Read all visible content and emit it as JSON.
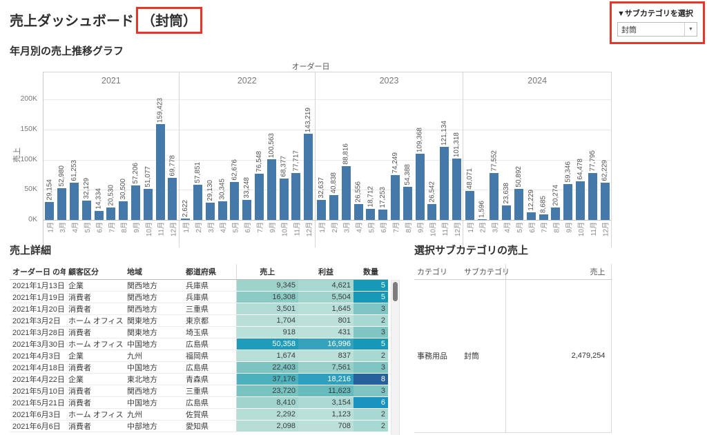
{
  "page": {
    "title": "売上ダッシュボード",
    "title_highlight": "（封筒）"
  },
  "theme": {
    "bar_color": "#4579a9",
    "annotation_red": "#e8352b"
  },
  "filter": {
    "label": "▼サブカテゴリを選択",
    "value": "封筒",
    "dropdown_arrow": "▼"
  },
  "chart_data": {
    "type": "bar",
    "title": "年月別の売上推移グラフ",
    "x_axis_title": "オーダー日",
    "ylabel": "売上",
    "yticks": [
      "200K",
      "150K",
      "100K",
      "50K",
      "0K"
    ],
    "ylim": [
      0,
      200000
    ],
    "grid": true,
    "groups": [
      {
        "year": "2021",
        "categories": [
          "1月",
          "3月",
          "4月",
          "5月",
          "6月",
          "7月",
          "8月",
          "9月",
          "10月",
          "11月",
          "12月"
        ],
        "values": [
          29154,
          52980,
          61253,
          32129,
          14334,
          20530,
          30500,
          57206,
          51077,
          159423,
          69778
        ]
      },
      {
        "year": "2022",
        "categories": [
          "1月",
          "2月",
          "3月",
          "4月",
          "5月",
          "6月",
          "7月",
          "9月",
          "10月",
          "11月",
          "12月"
        ],
        "values": [
          2622,
          57851,
          29130,
          30345,
          62676,
          33248,
          76548,
          100563,
          68377,
          77717,
          143219
        ]
      },
      {
        "year": "2023",
        "categories": [
          "1月",
          "2月",
          "3月",
          "4月",
          "5月",
          "6月",
          "7月",
          "8月",
          "9月",
          "10月",
          "11月",
          "12月"
        ],
        "values": [
          32637,
          40838,
          88816,
          26556,
          18712,
          17253,
          74249,
          54388,
          109368,
          26542,
          121134,
          101318
        ]
      },
      {
        "year": "2024",
        "categories": [
          "1月",
          "2月",
          "3月",
          "4月",
          "5月",
          "6月",
          "7月",
          "8月",
          "9月",
          "10月",
          "11月",
          "12月"
        ],
        "values": [
          48071,
          1596,
          77552,
          23638,
          50892,
          12229,
          8685,
          20274,
          59346,
          64478,
          77795,
          62229
        ]
      }
    ]
  },
  "detail_table": {
    "title": "売上詳細",
    "headers": [
      "オーダー日 の年..",
      "顧客区分",
      "地域",
      "都道府県",
      "売上",
      "利益",
      "数量"
    ],
    "rows": [
      {
        "date": "2021年1月13日",
        "segment": "企業",
        "region": "関西地方",
        "pref": "兵庫県",
        "sales": 9345,
        "profit": 4621,
        "qty": 5,
        "sc": "#9ed3cc",
        "pc": "#a6d7d0",
        "qc": "#1599b7"
      },
      {
        "date": "2021年1月19日",
        "segment": "消費者",
        "region": "関西地方",
        "pref": "兵庫県",
        "sales": 16308,
        "profit": 5504,
        "qty": 5,
        "sc": "#8acbc6",
        "pc": "#a0d4cd",
        "qc": "#1599b7"
      },
      {
        "date": "2021年1月20日",
        "segment": "消費者",
        "region": "関西地方",
        "pref": "三重県",
        "sales": 3501,
        "profit": 1645,
        "qty": 3,
        "sc": "#b2dcd5",
        "pc": "#b7dfd8",
        "qc": "#7fc5c3"
      },
      {
        "date": "2021年3月2日",
        "segment": "ホーム オフィス",
        "region": "関東地方",
        "pref": "東京都",
        "sales": 1704,
        "profit": 801,
        "qty": 2,
        "sc": "#b7dfd8",
        "pc": "#bae0d9",
        "qc": "#a7d8d2"
      },
      {
        "date": "2021年3月28日",
        "segment": "消費者",
        "region": "関東地方",
        "pref": "埼玉県",
        "sales": 918,
        "profit": 431,
        "qty": 3,
        "sc": "#b9e0d9",
        "pc": "#bbe1da",
        "qc": "#7fc5c3"
      },
      {
        "date": "2021年3月30日",
        "segment": "ホーム オフィス",
        "region": "中国地方",
        "pref": "広島県",
        "sales": 50358,
        "profit": 16996,
        "qty": 5,
        "sc": "#1e9cb9",
        "pc": "#35a3bc",
        "qc": "#1599b7"
      },
      {
        "date": "2021年4月3日",
        "segment": "企業",
        "region": "九州",
        "pref": "福岡県",
        "sales": 1674,
        "profit": 837,
        "qty": 2,
        "sc": "#b7dfd8",
        "pc": "#bae0d9",
        "qc": "#a7d8d2"
      },
      {
        "date": "2021年4月18日",
        "segment": "消費者",
        "region": "中国地方",
        "pref": "広島県",
        "sales": 22403,
        "profit": 7561,
        "qty": 3,
        "sc": "#7cc4c1",
        "pc": "#97d0c9",
        "qc": "#7fc5c3"
      },
      {
        "date": "2021年4月22日",
        "segment": "企業",
        "region": "東北地方",
        "pref": "青森県",
        "sales": 37176,
        "profit": 18216,
        "qty": 8,
        "sc": "#4db0bd",
        "pc": "#2f9fc0",
        "qc": "#27619c"
      },
      {
        "date": "2021年5月10日",
        "segment": "消費者",
        "region": "関西地方",
        "pref": "三重県",
        "sales": 23720,
        "profit": 11623,
        "qty": 3,
        "sc": "#78c2bf",
        "pc": "#66bbbd",
        "qc": "#7fc5c3"
      },
      {
        "date": "2021年5月21日",
        "segment": "消費者",
        "region": "中国地方",
        "pref": "広島県",
        "sales": 8410,
        "profit": 3154,
        "qty": 6,
        "sc": "#a0d4cd",
        "pc": "#acd9d3",
        "qc": "#1a93c0"
      },
      {
        "date": "2021年6月3日",
        "segment": "ホーム オフィス",
        "region": "九州",
        "pref": "佐賀県",
        "sales": 2292,
        "profit": 1123,
        "qty": 2,
        "sc": "#b5ded7",
        "pc": "#b9e0d9",
        "qc": "#a7d8d2"
      },
      {
        "date": "2021年6月6日",
        "segment": "消費者",
        "region": "中部地方",
        "pref": "愛知県",
        "sales": 2098,
        "profit": 708,
        "qty": 2,
        "sc": "#b6ded7",
        "pc": "#bae0d9",
        "qc": "#a7d8d2"
      }
    ]
  },
  "subcat_table": {
    "title": "選択サブカテゴリの売上",
    "headers": [
      "カテゴリ",
      "サブカテゴリ",
      "売上"
    ],
    "rows": [
      {
        "category": "事務用品",
        "subcategory": "封筒",
        "sales": 2479254
      }
    ]
  }
}
